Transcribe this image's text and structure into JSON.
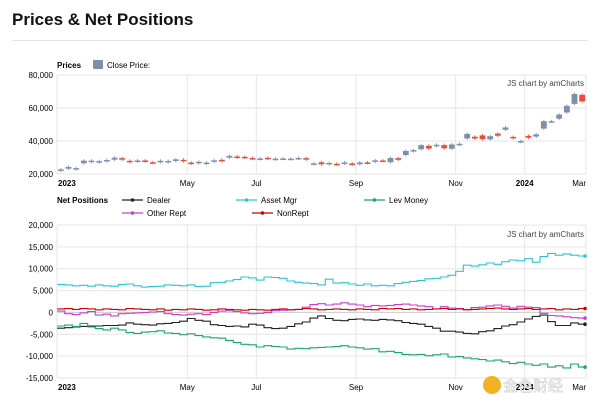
{
  "page": {
    "title": "Prices & Net Positions"
  },
  "credits": {
    "top": "JS chart by amCharts",
    "bottom": "JS chart by amCharts"
  },
  "watermark": {
    "text": "金色财经"
  },
  "chart_data": [
    {
      "type": "candlestick",
      "legend_title": "Prices",
      "series_label": "Close Price:",
      "y_ticks": [
        "80,000",
        "60,000",
        "40,000",
        "20,000"
      ],
      "y_tick_values": [
        80000,
        60000,
        40000,
        20000
      ],
      "ylim": [
        20000,
        80000
      ],
      "x_labels": [
        "2023",
        "May",
        "Jul",
        "Sep",
        "Nov",
        "2024",
        "Mar"
      ],
      "x_label_bold": [
        true,
        false,
        false,
        false,
        false,
        true,
        false
      ],
      "x_label_weeks": [
        0,
        17,
        26,
        39,
        52,
        61,
        69
      ],
      "x_range_weeks": [
        0,
        69
      ],
      "candles": [
        [
          22000,
          22800
        ],
        [
          23200,
          24300
        ],
        [
          22800,
          23600
        ],
        [
          26500,
          28100
        ],
        [
          27200,
          28100
        ],
        [
          26900,
          27800
        ],
        [
          27700,
          28500
        ],
        [
          28700,
          29900
        ],
        [
          29600,
          28800
        ],
        [
          28000,
          27400
        ],
        [
          27600,
          28200
        ],
        [
          28200,
          27700
        ],
        [
          27100,
          26800
        ],
        [
          27300,
          28000
        ],
        [
          27200,
          27900
        ],
        [
          27900,
          28900
        ],
        [
          28600,
          27800
        ],
        [
          26900,
          26400
        ],
        [
          26600,
          27400
        ],
        [
          26200,
          26900
        ],
        [
          27400,
          28300
        ],
        [
          28600,
          27900
        ],
        [
          29900,
          31000
        ],
        [
          30600,
          30000
        ],
        [
          30400,
          30000
        ],
        [
          29700,
          29300
        ],
        [
          29100,
          29400
        ],
        [
          29800,
          29400
        ],
        [
          28900,
          29300
        ],
        [
          29200,
          29400
        ],
        [
          29000,
          29300
        ],
        [
          29300,
          29700
        ],
        [
          29600,
          28900
        ],
        [
          26000,
          26400
        ],
        [
          27100,
          25900
        ],
        [
          26000,
          26700
        ],
        [
          26200,
          25800
        ],
        [
          26400,
          27000
        ],
        [
          26400,
          25800
        ],
        [
          25900,
          27000
        ],
        [
          27000,
          26700
        ],
        [
          27400,
          28300
        ],
        [
          28200,
          28100
        ],
        [
          27100,
          29700
        ],
        [
          29600,
          28600
        ],
        [
          31500,
          34000
        ],
        [
          33900,
          34500
        ],
        [
          35000,
          37500
        ],
        [
          37100,
          35400
        ],
        [
          36800,
          37700
        ],
        [
          37500,
          35600
        ],
        [
          35300,
          37900
        ],
        [
          37800,
          38300
        ],
        [
          41500,
          44300
        ],
        [
          42600,
          41500
        ],
        [
          43400,
          41100
        ],
        [
          41000,
          42900
        ],
        [
          44500,
          43200
        ],
        [
          46800,
          48200
        ],
        [
          42500,
          41800
        ],
        [
          39500,
          40000
        ],
        [
          43100,
          42000
        ],
        [
          42700,
          44000
        ],
        [
          47500,
          52000
        ],
        [
          51800,
          52000
        ],
        [
          53500,
          56000
        ],
        [
          57300,
          61300
        ],
        [
          62500,
          68500
        ],
        [
          68000,
          64000
        ]
      ],
      "down_color": "#e74c3c",
      "up_color": "#7f8fab"
    },
    {
      "type": "line",
      "legend_title": "Net Positions",
      "y_ticks": [
        "20,000",
        "15,000",
        "10,000",
        "5,000",
        "0",
        "-5,000",
        "-10,000",
        "-15,000"
      ],
      "y_tick_values": [
        20000,
        15000,
        10000,
        5000,
        0,
        -5000,
        -10000,
        -15000
      ],
      "ylim": [
        -15000,
        20000
      ],
      "x_labels": [
        "2023",
        "May",
        "Jul",
        "Sep",
        "Nov",
        "2024",
        "Mar"
      ],
      "x_label_bold": [
        true,
        false,
        false,
        false,
        false,
        true,
        false
      ],
      "x_label_weeks": [
        0,
        17,
        26,
        39,
        52,
        61,
        69
      ],
      "x_range_weeks": [
        0,
        69
      ],
      "series": [
        {
          "name": "Dealer",
          "color": "#222222",
          "values": [
            -3600,
            -3500,
            -3300,
            -3200,
            -3100,
            -3100,
            -3000,
            -3000,
            -2900,
            -2400,
            -2700,
            -2800,
            -2900,
            -2600,
            -2500,
            -2300,
            -2000,
            -1400,
            -1800,
            -2000,
            -2800,
            -3000,
            -3200,
            -3100,
            -3300,
            -2700,
            -2900,
            -3500,
            -3700,
            -3600,
            -3200,
            -2600,
            -2200,
            -1300,
            -800,
            -1400,
            -1800,
            -1900,
            -1600,
            -1500,
            -1700,
            -1800,
            -1600,
            -1700,
            -1900,
            -2300,
            -2500,
            -2700,
            -3200,
            -3600,
            -4300,
            -4300,
            -4500,
            -4800,
            -4900,
            -4400,
            -4200,
            -3700,
            -3100,
            -2800,
            -2200,
            -1500,
            -900,
            -600,
            -2100,
            -3000,
            -3000,
            -2400,
            -2700
          ]
        },
        {
          "name": "Asset Mgr",
          "color": "#29c4d6",
          "values": [
            6400,
            6300,
            6100,
            6200,
            6000,
            6300,
            6100,
            6000,
            6400,
            6500,
            6100,
            5800,
            5900,
            6000,
            6300,
            6200,
            6100,
            6300,
            5900,
            6000,
            6800,
            6900,
            7200,
            7500,
            8100,
            7900,
            7400,
            8100,
            8000,
            7800,
            7200,
            6900,
            6700,
            6600,
            6300,
            7600,
            6700,
            6800,
            6500,
            6200,
            6500,
            6100,
            6200,
            6100,
            6600,
            6900,
            7100,
            7300,
            7700,
            7800,
            8100,
            8500,
            9400,
            10800,
            10600,
            10900,
            11300,
            11000,
            11600,
            12000,
            11800,
            12300,
            11500,
            12800,
            13500,
            13100,
            13400,
            13100,
            12900
          ]
        },
        {
          "name": "Lev Money",
          "color": "#17a865",
          "values": [
            -3100,
            -2900,
            -3200,
            -2500,
            -3300,
            -3700,
            -4000,
            -3600,
            -4000,
            -4600,
            -4800,
            -4500,
            -4400,
            -4200,
            -4700,
            -4800,
            -5100,
            -4900,
            -5300,
            -5600,
            -5800,
            -5900,
            -6400,
            -6900,
            -7300,
            -7400,
            -7900,
            -7600,
            -7800,
            -7900,
            -8400,
            -8200,
            -8300,
            -8100,
            -8000,
            -7900,
            -7800,
            -7600,
            -7900,
            -8100,
            -8400,
            -8300,
            -9000,
            -8900,
            -9200,
            -9600,
            -9700,
            -9600,
            -9900,
            -9700,
            -9500,
            -10200,
            -10100,
            -10400,
            -10600,
            -10800,
            -11100,
            -10900,
            -11300,
            -11700,
            -11400,
            -11800,
            -12100,
            -11800,
            -12500,
            -12200,
            -12700,
            -11800,
            -12500
          ]
        },
        {
          "name": "Other Rept",
          "color": "#c93bd3",
          "values": [
            300,
            -300,
            -500,
            -100,
            200,
            -600,
            -400,
            -800,
            -300,
            -200,
            -100,
            0,
            100,
            200,
            -300,
            -500,
            -600,
            -400,
            -300,
            -500,
            0,
            300,
            400,
            200,
            -100,
            -300,
            -200,
            0,
            400,
            500,
            600,
            700,
            1200,
            1800,
            2000,
            1700,
            1900,
            2200,
            1900,
            1700,
            1300,
            1600,
            1500,
            1600,
            1800,
            1900,
            1700,
            1500,
            1300,
            800,
            1300,
            1000,
            900,
            700,
            1100,
            1200,
            1500,
            1700,
            1400,
            1000,
            1400,
            1200,
            1100,
            -200,
            -700,
            -800,
            -1000,
            -1200,
            -1300
          ]
        },
        {
          "name": "NonRept",
          "color": "#cc0000",
          "values": [
            800,
            900,
            700,
            900,
            800,
            600,
            800,
            700,
            600,
            900,
            800,
            700,
            600,
            800,
            500,
            700,
            600,
            800,
            700,
            500,
            600,
            800,
            700,
            600,
            500,
            700,
            600,
            500,
            700,
            800,
            600,
            700,
            900,
            800,
            600,
            700,
            800,
            700,
            600,
            800,
            700,
            600,
            900,
            800,
            900,
            700,
            800,
            600,
            700,
            800,
            900,
            700,
            800,
            600,
            700,
            800,
            900,
            1000,
            800,
            700,
            800,
            900,
            700,
            800,
            900,
            600,
            800,
            700,
            900
          ]
        }
      ]
    }
  ]
}
